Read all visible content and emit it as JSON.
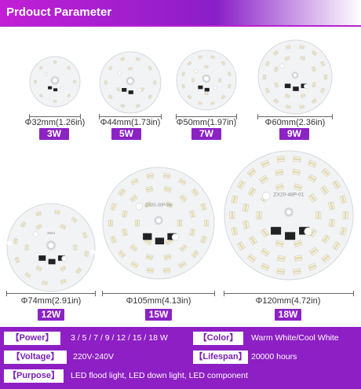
{
  "header": {
    "title": "Prdouct Parameter"
  },
  "colors": {
    "accent": "#8b23c4",
    "header_start": "#c21fd6",
    "board": "#f2f3f5",
    "led": "#f7f2de",
    "led_stripe": "#e1d7ae"
  },
  "boards": [
    {
      "size": "Φ32mm(1.26in)",
      "power": "3W"
    },
    {
      "size": "Φ44mm(1.73in)",
      "power": "5W"
    },
    {
      "size": "Φ50mm(1.97in)",
      "power": "7W"
    },
    {
      "size": "Φ60mm(2.36in)",
      "power": "9W"
    },
    {
      "size": "Φ74mm(2.91in)",
      "power": "12W",
      "silk": "3644"
    },
    {
      "size": "Φ105mm(4.13in)",
      "power": "15W",
      "silk": "ZX20-30P-06"
    },
    {
      "size": "Φ120mm(4.72in)",
      "power": "18W",
      "silk": "ZX20-48P-01"
    }
  ],
  "specs": {
    "power_label": "【Power】",
    "power_value": "3 / 5 / 7 / 9 / 12 / 15 / 18 W",
    "color_label": "【Color】",
    "color_value": "Warm White/Cool White",
    "voltage_label": "【Voltage】",
    "voltage_value": "220V-240V",
    "lifespan_label": "【Lifespan】",
    "lifespan_value": "20000 hours",
    "purpose_label": "【Purpose】",
    "purpose_value": "LED flood light, LED down light, LED component"
  }
}
